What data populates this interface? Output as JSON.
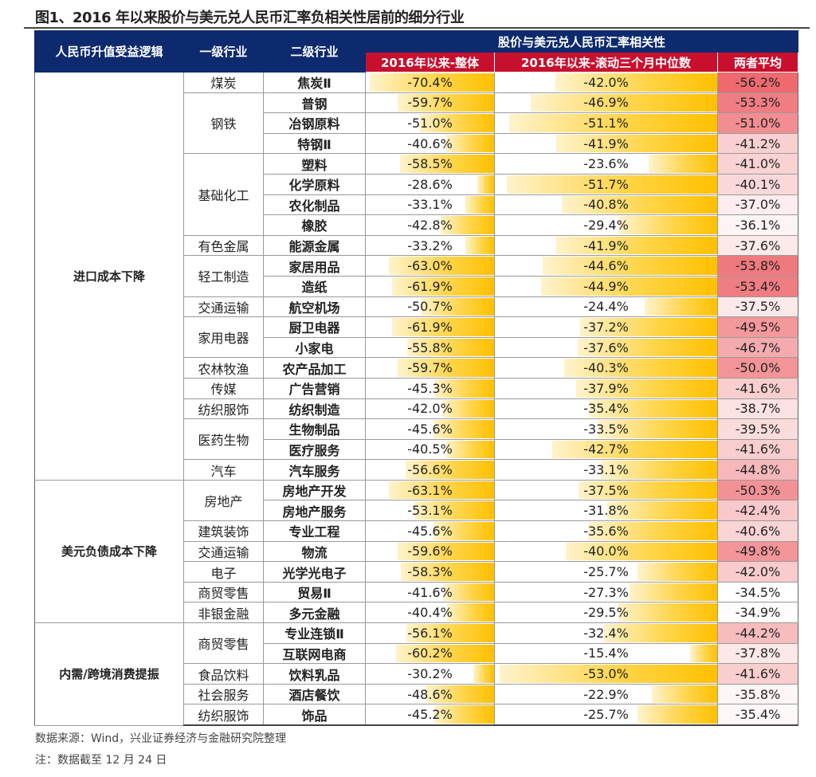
{
  "title": "图1、2016 年以来股价与美元兑人民币汇率负相关性居前的细分行业",
  "header": {
    "logic": "人民币升值受益逻辑",
    "level1": "一级行业",
    "level2": "二级行业",
    "group": "股价与美元兑人民币汇率相关性",
    "overall": "2016年以来-整体",
    "rolling": "2016年以来-滚动三个月中位数",
    "avg": "两者平均"
  },
  "colors": {
    "header_bg": "#0e2a6e",
    "subheader_bg": "#c8102e",
    "bar": "#ffc000",
    "avg_heat": "#ee6a6f"
  },
  "chart_data": {
    "type": "table",
    "groups": [
      {
        "logic": "进口成本下降",
        "industries": [
          {
            "name": "煤炭",
            "subs": [
              {
                "name": "焦炭Ⅱ",
                "overall": "-70.4%",
                "rolling": "-42.0%",
                "avg": "-56.2%"
              }
            ]
          },
          {
            "name": "钢铁",
            "subs": [
              {
                "name": "普钢",
                "overall": "-59.7%",
                "rolling": "-46.9%",
                "avg": "-53.3%"
              },
              {
                "name": "冶钢原料",
                "overall": "-51.0%",
                "rolling": "-51.1%",
                "avg": "-51.0%"
              },
              {
                "name": "特钢Ⅱ",
                "overall": "-40.6%",
                "rolling": "-41.9%",
                "avg": "-41.2%"
              }
            ]
          },
          {
            "name": "基础化工",
            "subs": [
              {
                "name": "塑料",
                "overall": "-58.5%",
                "rolling": "-23.6%",
                "avg": "-41.0%"
              },
              {
                "name": "化学原料",
                "overall": "-28.6%",
                "rolling": "-51.7%",
                "avg": "-40.1%"
              },
              {
                "name": "农化制品",
                "overall": "-33.1%",
                "rolling": "-40.8%",
                "avg": "-37.0%"
              },
              {
                "name": "橡胶",
                "overall": "-42.8%",
                "rolling": "-29.4%",
                "avg": "-36.1%"
              }
            ]
          },
          {
            "name": "有色金属",
            "subs": [
              {
                "name": "能源金属",
                "overall": "-33.2%",
                "rolling": "-41.9%",
                "avg": "-37.6%"
              }
            ]
          },
          {
            "name": "轻工制造",
            "subs": [
              {
                "name": "家居用品",
                "overall": "-63.0%",
                "rolling": "-44.6%",
                "avg": "-53.8%"
              },
              {
                "name": "造纸",
                "overall": "-61.9%",
                "rolling": "-44.9%",
                "avg": "-53.4%"
              }
            ]
          },
          {
            "name": "交通运输",
            "subs": [
              {
                "name": "航空机场",
                "overall": "-50.7%",
                "rolling": "-24.4%",
                "avg": "-37.5%"
              }
            ]
          },
          {
            "name": "家用电器",
            "subs": [
              {
                "name": "厨卫电器",
                "overall": "-61.9%",
                "rolling": "-37.2%",
                "avg": "-49.5%"
              },
              {
                "name": "小家电",
                "overall": "-55.8%",
                "rolling": "-37.6%",
                "avg": "-46.7%"
              }
            ]
          },
          {
            "name": "农林牧渔",
            "subs": [
              {
                "name": "农产品加工",
                "overall": "-59.7%",
                "rolling": "-40.3%",
                "avg": "-50.0%"
              }
            ]
          },
          {
            "name": "传媒",
            "subs": [
              {
                "name": "广告营销",
                "overall": "-45.3%",
                "rolling": "-37.9%",
                "avg": "-41.6%"
              }
            ]
          },
          {
            "name": "纺织服饰",
            "subs": [
              {
                "name": "纺织制造",
                "overall": "-42.0%",
                "rolling": "-35.4%",
                "avg": "-38.7%"
              }
            ]
          },
          {
            "name": "医药生物",
            "subs": [
              {
                "name": "生物制品",
                "overall": "-45.6%",
                "rolling": "-33.5%",
                "avg": "-39.5%"
              },
              {
                "name": "医疗服务",
                "overall": "-40.5%",
                "rolling": "-42.7%",
                "avg": "-41.6%"
              }
            ]
          },
          {
            "name": "汽车",
            "subs": [
              {
                "name": "汽车服务",
                "overall": "-56.6%",
                "rolling": "-33.1%",
                "avg": "-44.8%"
              }
            ]
          }
        ]
      },
      {
        "logic": "美元负债成本下降",
        "industries": [
          {
            "name": "房地产",
            "subs": [
              {
                "name": "房地产开发",
                "overall": "-63.1%",
                "rolling": "-37.5%",
                "avg": "-50.3%"
              },
              {
                "name": "房地产服务",
                "overall": "-53.1%",
                "rolling": "-31.8%",
                "avg": "-42.4%"
              }
            ]
          },
          {
            "name": "建筑装饰",
            "subs": [
              {
                "name": "专业工程",
                "overall": "-45.6%",
                "rolling": "-35.6%",
                "avg": "-40.6%"
              }
            ]
          },
          {
            "name": "交通运输",
            "subs": [
              {
                "name": "物流",
                "overall": "-59.6%",
                "rolling": "-40.0%",
                "avg": "-49.8%"
              }
            ]
          },
          {
            "name": "电子",
            "subs": [
              {
                "name": "光学光电子",
                "overall": "-58.3%",
                "rolling": "-25.7%",
                "avg": "-42.0%"
              }
            ]
          },
          {
            "name": "商贸零售",
            "subs": [
              {
                "name": "贸易Ⅱ",
                "overall": "-41.6%",
                "rolling": "-27.3%",
                "avg": "-34.5%"
              }
            ]
          },
          {
            "name": "非银金融",
            "subs": [
              {
                "name": "多元金融",
                "overall": "-40.4%",
                "rolling": "-29.5%",
                "avg": "-34.9%"
              }
            ]
          }
        ]
      },
      {
        "logic": "内需/跨境消费提振",
        "industries": [
          {
            "name": "商贸零售",
            "subs": [
              {
                "name": "专业连锁Ⅱ",
                "overall": "-56.1%",
                "rolling": "-32.4%",
                "avg": "-44.2%"
              },
              {
                "name": "互联网电商",
                "overall": "-60.2%",
                "rolling": "-15.4%",
                "avg": "-37.8%"
              }
            ]
          },
          {
            "name": "食品饮料",
            "subs": [
              {
                "name": "饮料乳品",
                "overall": "-30.2%",
                "rolling": "-53.0%",
                "avg": "-41.6%"
              }
            ]
          },
          {
            "name": "社会服务",
            "subs": [
              {
                "name": "酒店餐饮",
                "overall": "-48.6%",
                "rolling": "-22.9%",
                "avg": "-35.8%"
              }
            ]
          },
          {
            "name": "纺织服饰",
            "subs": [
              {
                "name": "饰品",
                "overall": "-45.2%",
                "rolling": "-25.7%",
                "avg": "-35.4%"
              }
            ]
          }
        ]
      }
    ]
  },
  "notes": {
    "source": "数据来源：Wind，兴业证券经济与金融研究院整理",
    "cutoff": "注：数据截至 12 月 24 日"
  }
}
